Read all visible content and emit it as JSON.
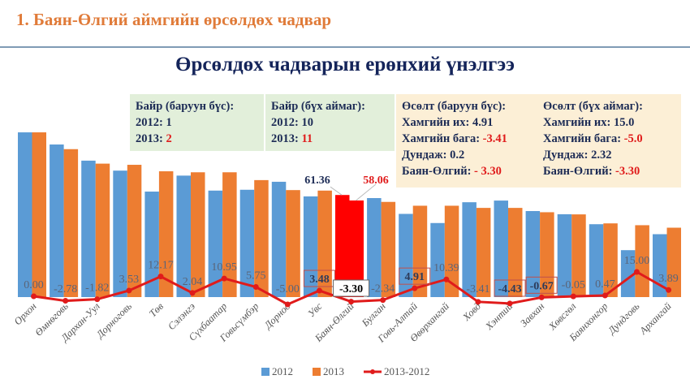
{
  "slide": {
    "title": "1. Баян-Өлгий аймгийн өрсөлдөх чадвар",
    "subtitle": "Өрсөлдөх чадварын ерөнхий үнэлгээ"
  },
  "info_boxes": [
    {
      "heading": "Байр (баруун бүс):",
      "lines": [
        {
          "label": "2012: ",
          "value": "1",
          "highlight": false
        },
        {
          "label": "2013: ",
          "value": "2",
          "highlight": true
        }
      ]
    },
    {
      "heading": "Байр (бүх аймаг):",
      "lines": [
        {
          "label": "2012: ",
          "value": "10",
          "highlight": false
        },
        {
          "label": "2013: ",
          "value": "11",
          "highlight": true
        }
      ]
    },
    {
      "heading": "Өсөлт (баруун бүс):",
      "lines": [
        {
          "label": "Хамгийн их: ",
          "value": "4.91",
          "highlight": false
        },
        {
          "label": "Хамгийн бага: ",
          "value": "-3.41",
          "highlight": true
        },
        {
          "label": "Дундаж: ",
          "value": "0.2",
          "highlight": false
        },
        {
          "label": "Баян-Өлгий: ",
          "value": "- 3.30",
          "highlight": true
        }
      ]
    },
    {
      "heading": "Өсөлт (бүх аймаг):",
      "lines": [
        {
          "label": "Хамгийн их: ",
          "value": "15.0",
          "highlight": false
        },
        {
          "label": "Хамгийн бага: ",
          "value": "-5.0",
          "highlight": true
        },
        {
          "label": "Дундаж: ",
          "value": "2.32",
          "highlight": false
        },
        {
          "label": "Баян-Өлгий: ",
          "value": "-3.30",
          "highlight": true
        }
      ]
    }
  ],
  "chart_data": {
    "type": "bar",
    "title": "Өрсөлдөх чадварын ерөнхий үнэлгээ",
    "categories": [
      "Орхон",
      "Өмнөговь",
      "Дархан-Уул",
      "Дорноговь",
      "Төв",
      "Сэлэнгэ",
      "Сүхбаатар",
      "Говьсүмбэр",
      "Дорнод",
      "Увс",
      "Баян-Өлгий",
      "Булган",
      "Говь-Алтай",
      "Өвөрхангай",
      "Ховд",
      "Хэнтий",
      "Завхан",
      "Хөвсгөл",
      "Баянхонгор",
      "Дундговь",
      "Архангай"
    ],
    "series": [
      {
        "name": "2012",
        "type": "bar",
        "color": "#5b9bd5",
        "values": [
          99.0,
          91.7,
          82.0,
          76.0,
          63.4,
          73.0,
          64.0,
          64.5,
          69.3,
          60.5,
          61.36,
          59.5,
          50.0,
          44.5,
          57.0,
          58.0,
          51.7,
          49.8,
          43.8,
          28.2,
          37.8
        ]
      },
      {
        "name": "2013",
        "type": "bar",
        "color": "#ed7d31",
        "values": [
          99.0,
          88.9,
          80.2,
          79.5,
          75.6,
          75.0,
          75.0,
          70.3,
          64.3,
          64.0,
          58.06,
          57.2,
          54.9,
          54.9,
          53.6,
          53.6,
          51.0,
          49.7,
          44.3,
          43.2,
          41.7
        ]
      },
      {
        "name": "2013-2012",
        "type": "line",
        "color": "#e01b1b",
        "values": [
          0.0,
          -2.78,
          -1.82,
          3.53,
          12.17,
          2.04,
          10.95,
          5.75,
          -5.0,
          3.48,
          -3.3,
          -2.34,
          4.91,
          10.39,
          -3.41,
          -4.43,
          -0.67,
          -0.05,
          0.47,
          15.0,
          3.89
        ],
        "labels": [
          "0.00",
          "-2.78",
          "-1.82",
          "3.53",
          "12.17",
          "2.04",
          "10.95",
          "5.75",
          "-5.00",
          "3.48",
          "-3.30",
          "-2.34",
          "4.91",
          "10.39",
          "-3.41",
          "-4.43",
          "-0.67",
          "-0.05",
          "0.47",
          "15.00",
          "3.89"
        ]
      }
    ],
    "highlight_category": "Баян-Өлгий",
    "highlight_color": "#ff0000",
    "highlight_labels": {
      "2012": "61.36",
      "2013": "58.06"
    },
    "boxed_labels": [
      "3.48",
      "4.91",
      "-4.43",
      "-0.67"
    ],
    "legend": {
      "position": "bottom",
      "entries": [
        "2012",
        "2013",
        "2013-2012"
      ]
    },
    "grid": false
  }
}
